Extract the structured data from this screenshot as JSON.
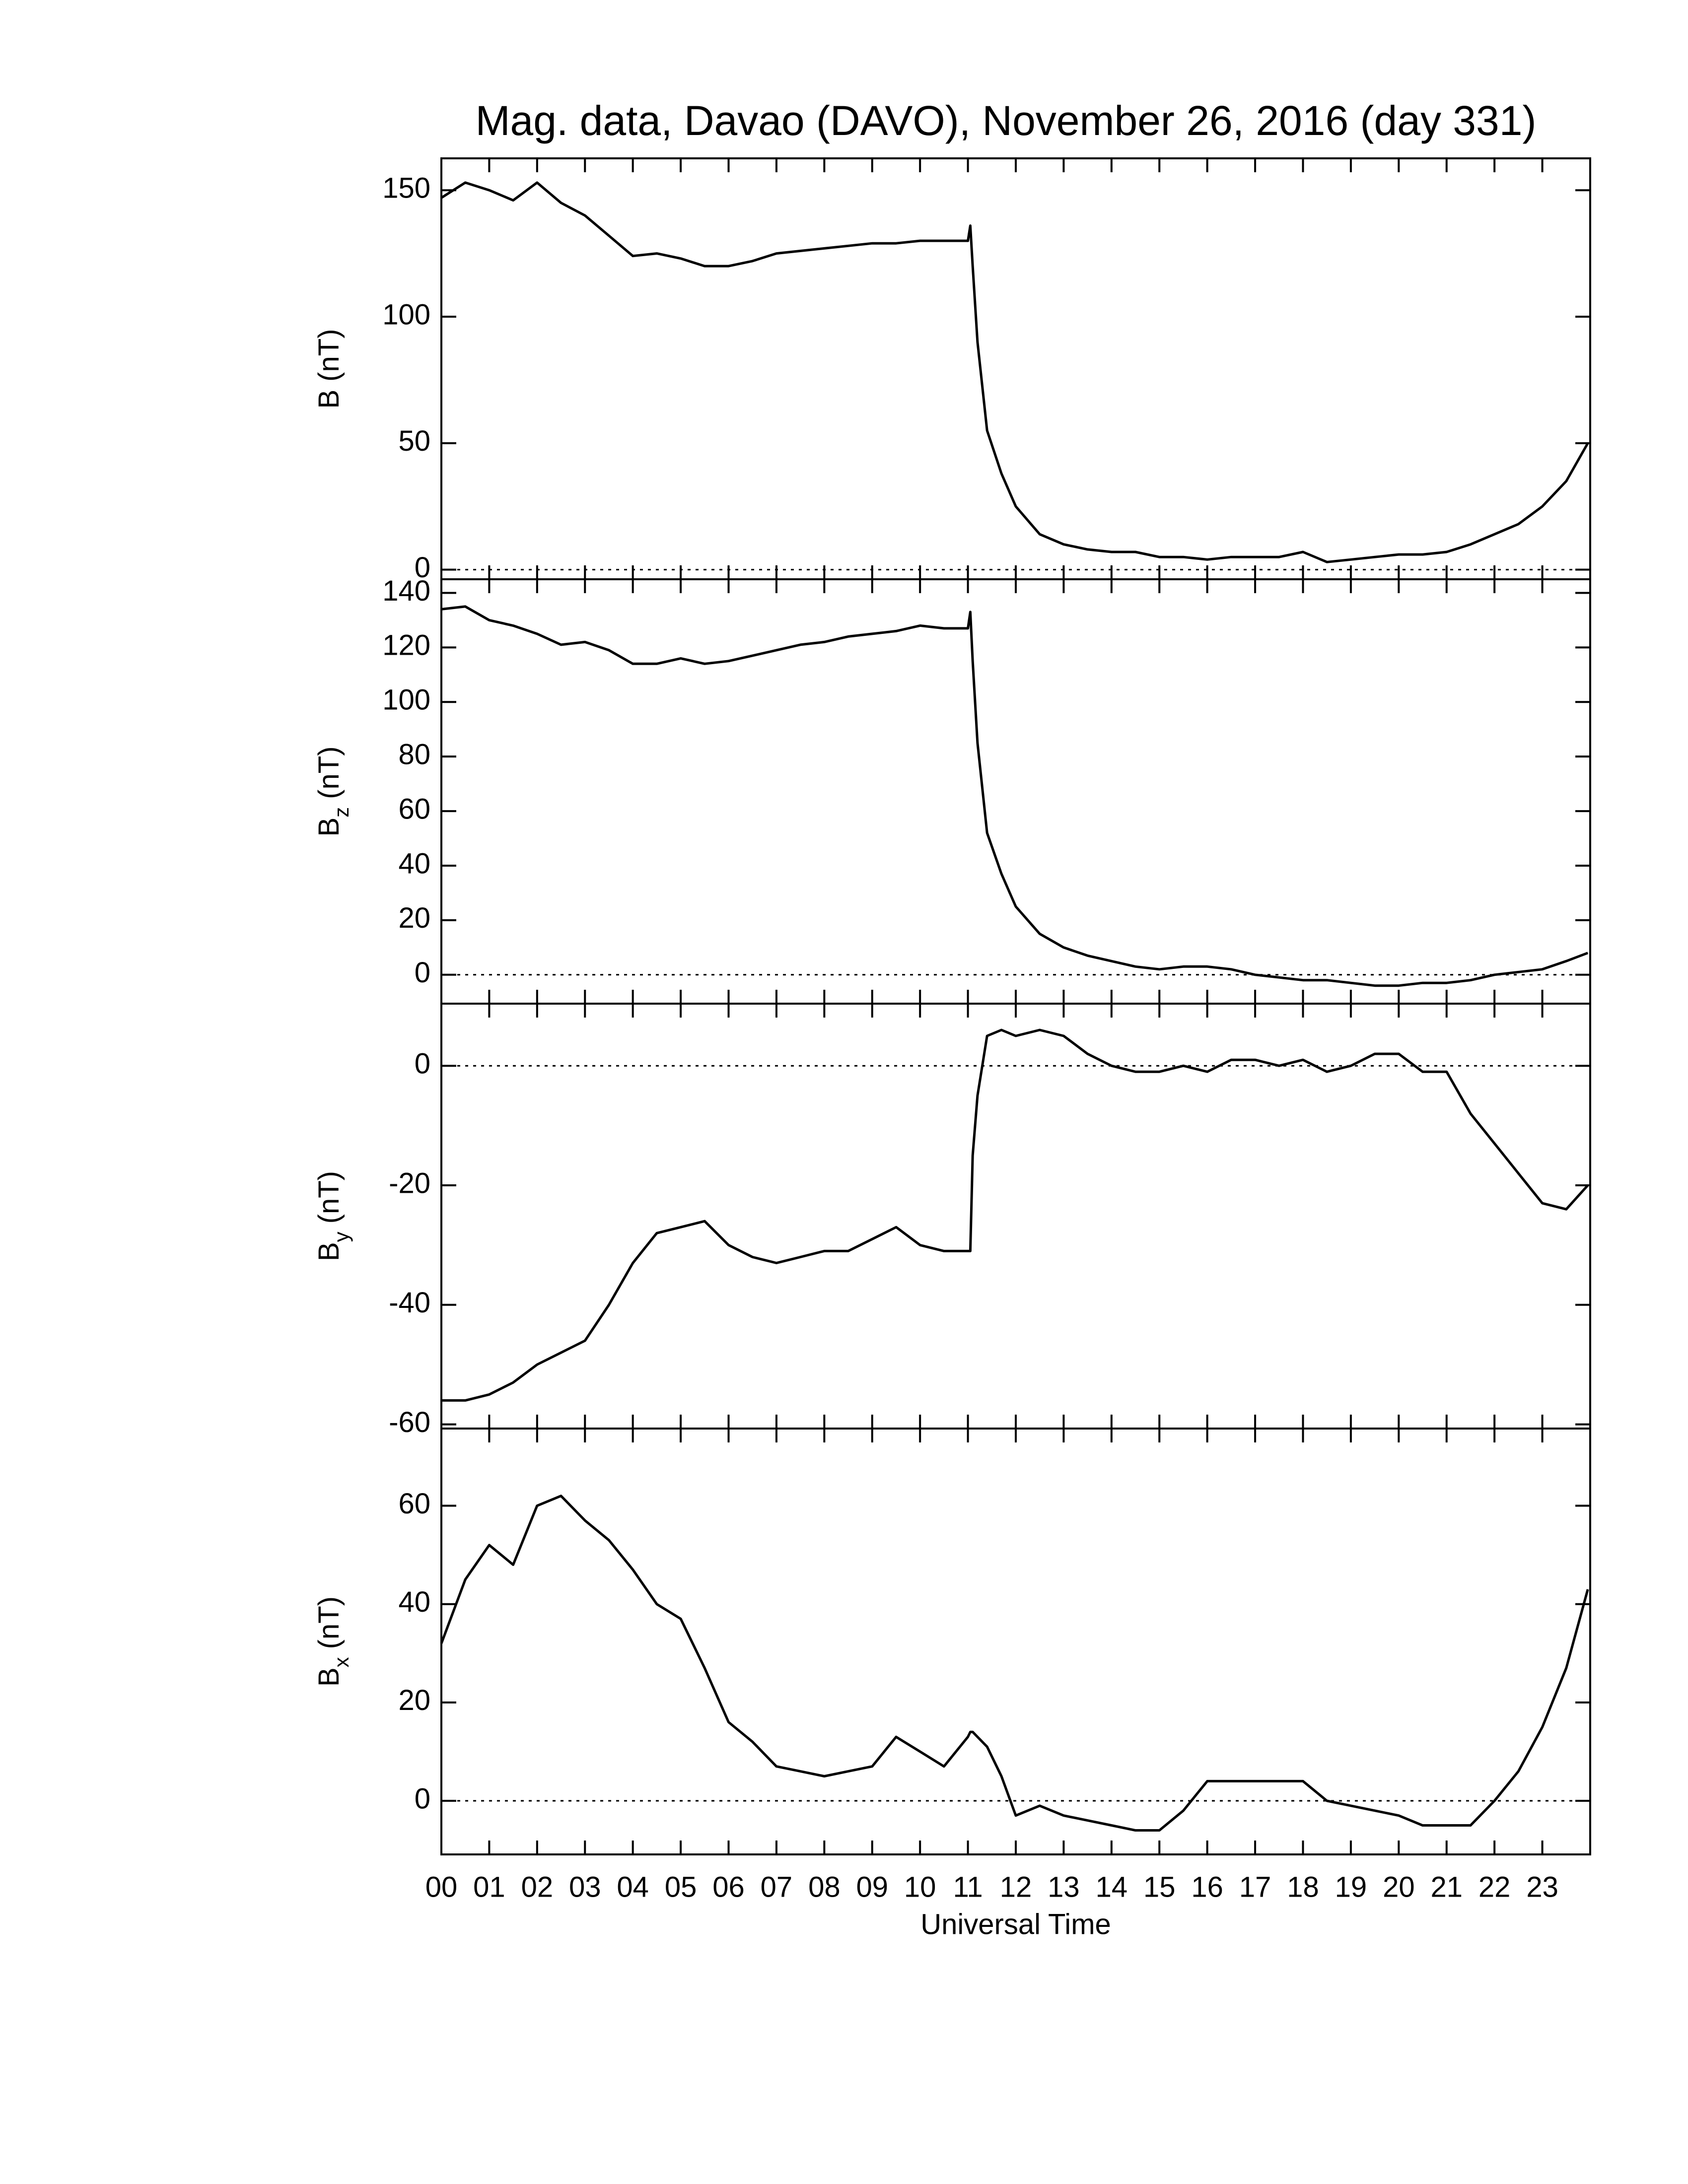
{
  "chart_data": [
    {
      "type": "line",
      "title": "Mag. data, Davao (DAVO), November 26, 2016 (day 331)",
      "ylabel_main": "B",
      "ylabel_unit": "(nT)",
      "x": [
        0,
        0.5,
        1,
        1.5,
        2,
        2.5,
        3,
        3.5,
        4,
        4.5,
        5,
        5.5,
        6,
        6.5,
        7,
        7.5,
        8,
        8.5,
        9,
        9.5,
        10,
        10.5,
        11,
        11.05,
        11.1,
        11.2,
        11.4,
        11.7,
        12,
        12.5,
        13,
        13.5,
        14,
        14.5,
        15,
        15.5,
        16,
        16.5,
        17,
        17.5,
        18,
        18.5,
        19,
        19.5,
        20,
        20.5,
        21,
        21.5,
        22,
        22.5,
        23,
        23.5,
        23.95
      ],
      "values": [
        147,
        153,
        150,
        146,
        153,
        145,
        140,
        132,
        124,
        125,
        123,
        120,
        120,
        122,
        125,
        126,
        127,
        128,
        129,
        129,
        130,
        130,
        130,
        136,
        120,
        90,
        55,
        38,
        25,
        14,
        10,
        8,
        7,
        7,
        5,
        5,
        4,
        5,
        5,
        5,
        7,
        3,
        4,
        5,
        6,
        6,
        7,
        10,
        14,
        18,
        25,
        35,
        50
      ],
      "color": "#000000",
      "zero_line": true,
      "xlim": [
        0,
        24
      ],
      "ylim": [
        -3.8,
        162.6
      ],
      "yticks": [
        0,
        50,
        100,
        150
      ]
    },
    {
      "type": "line",
      "ylabel_main": "B",
      "ylabel_sub": "z",
      "ylabel_unit": "(nT)",
      "x": [
        0,
        0.5,
        1,
        1.5,
        2,
        2.5,
        3,
        3.5,
        4,
        4.5,
        5,
        5.5,
        6,
        6.5,
        7,
        7.5,
        8,
        8.5,
        9,
        9.5,
        10,
        10.5,
        11,
        11.05,
        11.1,
        11.2,
        11.4,
        11.7,
        12,
        12.5,
        13,
        13.5,
        14,
        14.5,
        15,
        15.5,
        16,
        16.5,
        17,
        17.5,
        18,
        18.5,
        19,
        19.5,
        20,
        20.5,
        21,
        21.5,
        22,
        22.5,
        23,
        23.5,
        23.95
      ],
      "values": [
        134,
        135,
        130,
        128,
        125,
        121,
        122,
        119,
        114,
        114,
        116,
        114,
        115,
        117,
        119,
        121,
        122,
        124,
        125,
        126,
        128,
        127,
        127,
        133,
        115,
        85,
        52,
        37,
        25,
        15,
        10,
        7,
        5,
        3,
        2,
        3,
        3,
        2,
        0,
        -1,
        -2,
        -2,
        -3,
        -4,
        -4,
        -3,
        -3,
        -2,
        0,
        1,
        2,
        5,
        8
      ],
      "color": "#000000",
      "zero_line": true,
      "xlim": [
        0,
        24
      ],
      "ylim": [
        -10.6,
        145
      ],
      "yticks": [
        0,
        20,
        40,
        60,
        80,
        100,
        120,
        140
      ]
    },
    {
      "type": "line",
      "ylabel_main": "B",
      "ylabel_sub": "y",
      "ylabel_unit": "(nT)",
      "x": [
        0,
        0.5,
        1,
        1.5,
        2,
        2.5,
        3,
        3.5,
        4,
        4.5,
        5,
        5.5,
        6,
        6.5,
        7,
        7.5,
        8,
        8.5,
        9,
        9.5,
        10,
        10.5,
        11,
        11.05,
        11.1,
        11.2,
        11.4,
        11.7,
        12,
        12.5,
        13,
        13.5,
        14,
        14.5,
        15,
        15.5,
        16,
        16.5,
        17,
        17.5,
        18,
        18.5,
        19,
        19.5,
        20,
        20.5,
        21,
        21.5,
        22,
        22.5,
        23,
        23.5,
        23.95
      ],
      "values": [
        -56,
        -56,
        -55,
        -53,
        -50,
        -48,
        -46,
        -40,
        -33,
        -28,
        -27,
        -26,
        -30,
        -32,
        -33,
        -32,
        -31,
        -31,
        -29,
        -27,
        -30,
        -31,
        -31,
        -31,
        -15,
        -5,
        5,
        6,
        5,
        6,
        5,
        2,
        0,
        -1,
        -1,
        0,
        -1,
        1,
        1,
        0,
        1,
        -1,
        0,
        2,
        2,
        -1,
        -1,
        -8,
        -13,
        -18,
        -23,
        -24,
        -20
      ],
      "color": "#000000",
      "zero_line": true,
      "xlim": [
        0,
        24
      ],
      "ylim": [
        -60.7,
        10.4
      ],
      "yticks": [
        -60,
        -40,
        -20,
        0
      ]
    },
    {
      "type": "line",
      "ylabel_main": "B",
      "ylabel_sub": "x",
      "ylabel_unit": "(nT)",
      "xlabel": "Universal Time",
      "x": [
        0,
        0.5,
        1,
        1.5,
        2,
        2.5,
        3,
        3.5,
        4,
        4.5,
        5,
        5.5,
        6,
        6.5,
        7,
        7.5,
        8,
        8.5,
        9,
        9.5,
        10,
        10.5,
        11,
        11.05,
        11.1,
        11.2,
        11.4,
        11.7,
        12,
        12.5,
        13,
        13.5,
        14,
        14.5,
        15,
        15.5,
        16,
        16.5,
        17,
        17.5,
        18,
        18.5,
        19,
        19.5,
        20,
        20.5,
        21,
        21.5,
        22,
        22.5,
        23,
        23.5,
        23.95
      ],
      "values": [
        32,
        45,
        52,
        48,
        60,
        62,
        57,
        53,
        47,
        40,
        37,
        27,
        16,
        12,
        7,
        6,
        5,
        6,
        7,
        13,
        10,
        7,
        13,
        14,
        14,
        13,
        11,
        5,
        -3,
        -1,
        -3,
        -4,
        -5,
        -6,
        -6,
        -2,
        4,
        4,
        4,
        4,
        4,
        0,
        -1,
        -2,
        -3,
        -5,
        -5,
        -5,
        0,
        6,
        15,
        27,
        43
      ],
      "color": "#000000",
      "zero_line": true,
      "xlim": [
        0,
        24
      ],
      "ylim": [
        -10.9,
        75.7
      ],
      "yticks": [
        0,
        20,
        40,
        60
      ],
      "xticks": [
        {
          "value": 0,
          "label": "00"
        },
        {
          "value": 1,
          "label": "01"
        },
        {
          "value": 2,
          "label": "02"
        },
        {
          "value": 3,
          "label": "03"
        },
        {
          "value": 4,
          "label": "04"
        },
        {
          "value": 5,
          "label": "05"
        },
        {
          "value": 6,
          "label": "06"
        },
        {
          "value": 7,
          "label": "07"
        },
        {
          "value": 8,
          "label": "08"
        },
        {
          "value": 9,
          "label": "09"
        },
        {
          "value": 10,
          "label": "10"
        },
        {
          "value": 11,
          "label": "11"
        },
        {
          "value": 12,
          "label": "12"
        },
        {
          "value": 13,
          "label": "13"
        },
        {
          "value": 14,
          "label": "14"
        },
        {
          "value": 15,
          "label": "15"
        },
        {
          "value": 16,
          "label": "16"
        },
        {
          "value": 17,
          "label": "17"
        },
        {
          "value": 18,
          "label": "18"
        },
        {
          "value": 19,
          "label": "19"
        },
        {
          "value": 20,
          "label": "20"
        },
        {
          "value": 21,
          "label": "21"
        },
        {
          "value": 22,
          "label": "22"
        },
        {
          "value": 23,
          "label": "23"
        }
      ]
    }
  ]
}
